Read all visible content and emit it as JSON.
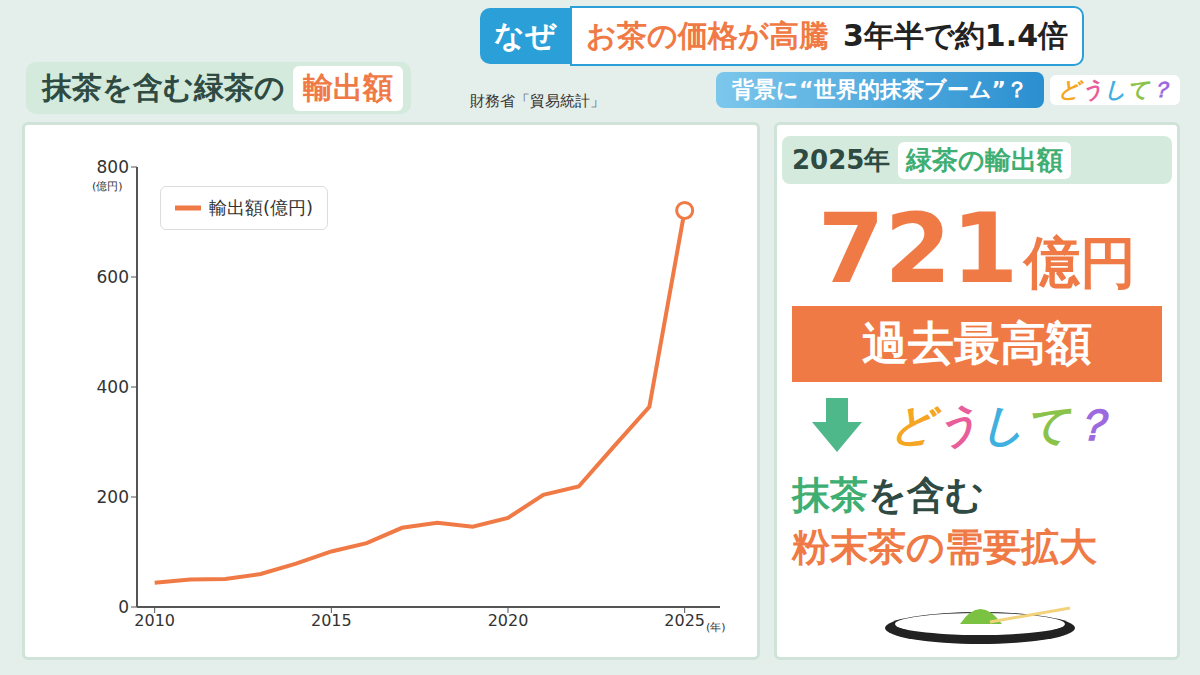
{
  "header": {
    "tag": "なぜ",
    "headline": "お茶の価格が高騰",
    "headline_sub": "3年半で約1.4倍",
    "subline": "背景に“世界的抹茶ブーム”？",
    "badge": "どうして？"
  },
  "chart_data": {
    "type": "line",
    "title": "抹茶を含む緑茶の",
    "title_highlight": "輸出額",
    "source": "財務省「貿易統計」",
    "y_unit": "(億円)",
    "x_unit": "(年)",
    "x": [
      2010,
      2011,
      2012,
      2013,
      2014,
      2015,
      2016,
      2017,
      2018,
      2019,
      2020,
      2021,
      2022,
      2023,
      2024,
      2025
    ],
    "series": [
      {
        "name": "輸出額(億円)",
        "color": "#f07a45",
        "marker": "end",
        "values": [
          44,
          50,
          51,
          60,
          79,
          101,
          116,
          144,
          153,
          146,
          162,
          204,
          219,
          292,
          364,
          721
        ]
      }
    ],
    "xlim": [
      2009.5,
      2026
    ],
    "xticks": [
      2010,
      2015,
      2020,
      2025
    ],
    "ylim": [
      0,
      800
    ],
    "yticks": [
      0,
      200,
      400,
      600,
      800
    ],
    "grid": false,
    "legend": "upper left"
  },
  "side_panel": {
    "year": "2025年",
    "label": "緑茶の輸出額",
    "value": 721,
    "unit": "億円",
    "badge": "過去最高額",
    "question": "どうして？",
    "reason_highlight": "抹茶",
    "reason_rest": "を含む",
    "reason_line2": "粉末茶の需要拡大"
  }
}
